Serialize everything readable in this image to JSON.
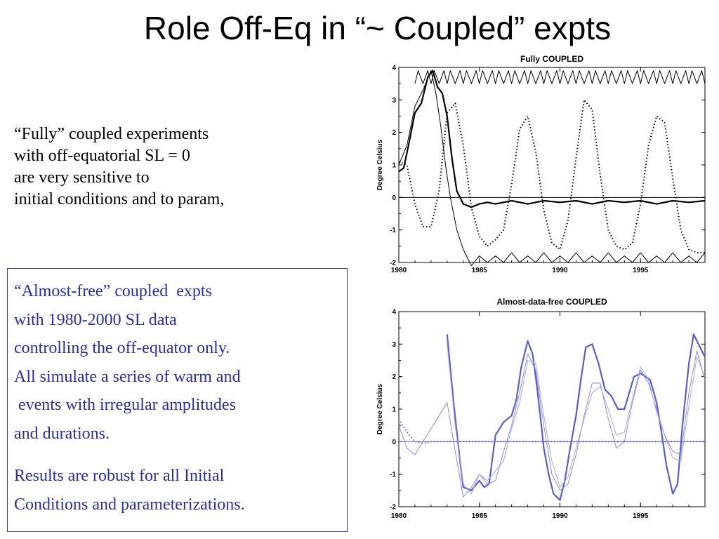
{
  "slide": {
    "title": "Role Off-Eq in “~ Coupled” expts",
    "intro_lines": [
      "“Fully” coupled experiments",
      "with off-equatorial SL = 0",
      "are very sensitive to",
      "initial conditions and to param,"
    ],
    "box_lines": [
      "“Almost-free” coupled  expts",
      "with 1980-2000 SL data",
      "controlling the off-equator only.",
      "All simulate a series of warm and",
      " events with irregular amplitudes",
      "and durations."
    ],
    "box_lines_2": [
      "Results are robust for all Initial",
      "Conditions and parameterizations."
    ],
    "colors": {
      "box_text": "#2a2fa0",
      "box_border": "#3b3f9a",
      "series_blue": "#5a5fc8"
    }
  },
  "chart_data": [
    {
      "type": "line",
      "title": "Fully COUPLED",
      "xlabel": "",
      "ylabel": "Degree Celsius",
      "xlim": [
        1980,
        1999
      ],
      "ylim": [
        -2,
        4
      ],
      "xticks": [
        "1980",
        "1985",
        "1990",
        "1995"
      ],
      "yticks": [
        "4",
        "3",
        "2",
        "1",
        "0",
        "-1",
        "-2"
      ],
      "grid": false,
      "reference_line": 0,
      "series": [
        {
          "style": "thick-solid",
          "color": "#000000",
          "x": [
            1980.0,
            1980.3,
            1980.6,
            1981.0,
            1981.4,
            1981.8,
            1982.1,
            1982.4,
            1982.7,
            1983.0,
            1983.3,
            1983.6,
            1984.0,
            1984.5,
            1985.0,
            1985.5,
            1986.0,
            1987.0,
            1988.0,
            1989.0,
            1990.0,
            1991.0,
            1992.0,
            1993.0,
            1994.0,
            1995.0,
            1996.0,
            1997.0,
            1998.0,
            1999.0
          ],
          "y": [
            0.8,
            0.9,
            1.6,
            2.6,
            2.9,
            3.7,
            3.9,
            3.4,
            3.2,
            2.5,
            1.2,
            0.2,
            -0.2,
            -0.3,
            -0.2,
            -0.15,
            -0.2,
            -0.1,
            -0.2,
            -0.1,
            -0.15,
            -0.1,
            -0.2,
            -0.1,
            -0.15,
            -0.1,
            -0.2,
            -0.1,
            -0.15,
            -0.1
          ]
        },
        {
          "style": "dotted",
          "color": "#000000",
          "x": [
            1980.0,
            1980.5,
            1981.0,
            1981.5,
            1982.0,
            1982.5,
            1983.0,
            1983.5,
            1984.0,
            1984.5,
            1985.0,
            1985.5,
            1986.0,
            1986.5,
            1987.0,
            1987.5,
            1988.0,
            1988.5,
            1989.0,
            1989.5,
            1990.0,
            1990.5,
            1991.0,
            1991.5,
            1992.0,
            1992.5,
            1993.0,
            1993.5,
            1994.0,
            1994.5,
            1995.0,
            1995.5,
            1996.0,
            1996.5,
            1997.0,
            1997.5,
            1998.0,
            1998.5,
            1999.0
          ],
          "y": [
            1.1,
            1.0,
            -0.2,
            -0.9,
            -0.9,
            0.2,
            2.6,
            2.9,
            1.6,
            -0.3,
            -1.2,
            -1.5,
            -1.3,
            -1.0,
            0.4,
            2.1,
            2.5,
            1.4,
            -0.4,
            -1.4,
            -1.6,
            -0.7,
            1.2,
            3.0,
            2.7,
            0.7,
            -1.0,
            -1.5,
            -1.6,
            -1.4,
            -0.2,
            1.6,
            2.5,
            2.3,
            0.6,
            -1.0,
            -1.6,
            -1.7,
            -1.7
          ]
        },
        {
          "style": "thin-solid",
          "color": "#000000",
          "x": [
            1980.0,
            1980.5,
            1981.0,
            1981.5,
            1982.0,
            1982.3,
            1982.6,
            1982.9,
            1983.2,
            1983.6,
            1984.0,
            1984.5,
            1985.0,
            1985.5,
            1986.0,
            1986.5,
            1987.0,
            1987.5,
            1988.0,
            1988.5,
            1989.0,
            1989.5,
            1990.0,
            1990.5,
            1991.0,
            1991.5,
            1992.0,
            1992.5,
            1993.0,
            1993.5,
            1994.0,
            1994.5,
            1995.0,
            1995.5,
            1996.0,
            1996.5,
            1997.0,
            1997.5,
            1998.0,
            1998.5,
            1999.0
          ],
          "y": [
            1.0,
            1.6,
            2.8,
            3.3,
            3.9,
            3.2,
            2.2,
            1.0,
            0.0,
            -1.0,
            -1.6,
            -2.1,
            -1.8,
            -2.0,
            -1.8,
            -2.0,
            -1.7,
            -2.0,
            -1.8,
            -2.0,
            -1.7,
            -2.0,
            -1.8,
            -2.0,
            -1.7,
            -2.0,
            -1.8,
            -2.0,
            -1.7,
            -2.0,
            -1.8,
            -2.0,
            -1.7,
            -2.0,
            -1.8,
            -2.0,
            -1.7,
            -2.0,
            -1.8,
            -2.0,
            -1.7
          ]
        },
        {
          "style": "thin-solid",
          "color": "#000000",
          "x": [
            1981.0,
            1981.2,
            1981.5,
            1981.8,
            1982.0,
            1982.2,
            1982.5,
            1982.8,
            1983.0,
            1983.2,
            1983.5,
            1983.8,
            1984.0,
            1984.2,
            1984.5,
            1984.8,
            1985.0,
            1985.2,
            1985.5,
            1985.8,
            1986.0,
            1986.2,
            1986.5,
            1986.8,
            1987.0,
            1987.2,
            1987.5,
            1987.8,
            1988.0,
            1988.2,
            1988.5,
            1988.8,
            1989.0,
            1989.2,
            1989.5,
            1989.8,
            1990.0,
            1990.2,
            1990.5,
            1990.8,
            1991.0,
            1991.2,
            1991.5,
            1991.8,
            1992.0,
            1992.2,
            1992.5,
            1992.8,
            1993.0,
            1993.2,
            1993.5,
            1993.8,
            1994.0,
            1994.2,
            1994.5,
            1994.8,
            1995.0,
            1995.2,
            1995.5,
            1995.8,
            1996.0,
            1996.2,
            1996.5,
            1996.8,
            1997.0,
            1997.2,
            1997.5,
            1997.8,
            1998.0,
            1998.2,
            1998.5,
            1998.8,
            1999.0
          ],
          "y": [
            3.5,
            3.9,
            3.5,
            3.9,
            3.5,
            3.9,
            3.5,
            3.9,
            3.5,
            3.9,
            3.5,
            3.9,
            3.5,
            3.9,
            3.5,
            3.9,
            3.5,
            3.9,
            3.5,
            3.9,
            3.5,
            3.9,
            3.5,
            3.9,
            3.5,
            3.9,
            3.5,
            3.9,
            3.5,
            3.9,
            3.5,
            3.9,
            3.5,
            3.9,
            3.5,
            3.9,
            3.5,
            3.9,
            3.5,
            3.9,
            3.5,
            3.9,
            3.5,
            3.9,
            3.5,
            3.9,
            3.5,
            3.9,
            3.5,
            3.9,
            3.5,
            3.9,
            3.5,
            3.9,
            3.5,
            3.9,
            3.5,
            3.9,
            3.5,
            3.9,
            3.5,
            3.9,
            3.5,
            3.9,
            3.5,
            3.9,
            3.5,
            3.9,
            3.5,
            3.9,
            3.5,
            3.9,
            3.5
          ]
        }
      ]
    },
    {
      "type": "line",
      "title": "Almost-data-free COUPLED",
      "xlabel": "",
      "ylabel": "Degree Celsius",
      "xlim": [
        1980,
        1999
      ],
      "ylim": [
        -2,
        4
      ],
      "xticks": [
        "1980",
        "1985",
        "1990",
        "1995"
      ],
      "yticks": [
        "4",
        "3",
        "2",
        "1",
        "0",
        "-1",
        "-2"
      ],
      "grid": false,
      "reference_line": 0,
      "series": [
        {
          "style": "thick-solid",
          "color": "#5a5fc8",
          "x": [
            1983.0,
            1983.4,
            1983.8,
            1984.0,
            1984.5,
            1985.0,
            1985.3,
            1985.6,
            1986.0,
            1986.5,
            1987.0,
            1987.3,
            1987.6,
            1988.0,
            1988.3,
            1988.6,
            1989.0,
            1989.3,
            1989.6,
            1990.0,
            1990.3,
            1990.6,
            1991.0,
            1991.3,
            1991.6,
            1992.0,
            1992.4,
            1992.8,
            1993.2,
            1993.6,
            1994.0,
            1994.3,
            1994.6,
            1995.0,
            1995.3,
            1995.6,
            1996.0,
            1996.3,
            1996.6,
            1997.0,
            1997.3,
            1997.6,
            1998.0,
            1998.3,
            1998.6,
            1999.0
          ],
          "y": [
            3.3,
            1.2,
            -0.6,
            -1.4,
            -1.5,
            -1.2,
            -1.4,
            -1.3,
            0.2,
            0.6,
            0.8,
            1.3,
            2.3,
            3.1,
            2.7,
            1.6,
            -0.2,
            -1.0,
            -1.6,
            -1.8,
            -1.2,
            -0.3,
            0.8,
            1.9,
            2.9,
            3.0,
            2.4,
            1.6,
            1.4,
            1.0,
            1.0,
            1.5,
            2.0,
            2.1,
            2.0,
            1.9,
            1.2,
            0.3,
            -0.7,
            -1.6,
            -1.3,
            0.5,
            2.4,
            3.3,
            3.0,
            2.6
          ]
        },
        {
          "style": "thin-solid",
          "color": "#8a8ed8",
          "x": [
            1980.0,
            1980.5,
            1981.0,
            1981.5,
            1982.0,
            1982.5,
            1983.0,
            1983.5,
            1984.0,
            1984.5,
            1985.0,
            1985.5,
            1986.0,
            1986.5,
            1987.0,
            1987.5,
            1988.0,
            1988.5,
            1989.0,
            1989.5,
            1990.0,
            1990.5,
            1991.0,
            1991.5,
            1992.0,
            1992.5,
            1993.0,
            1993.5,
            1994.0,
            1994.5,
            1995.0,
            1995.5,
            1996.0,
            1996.5,
            1997.0,
            1997.5,
            1998.0,
            1998.5,
            1999.0
          ],
          "y": [
            0.5,
            -0.2,
            -0.4,
            0.0,
            0.4,
            0.8,
            1.2,
            -0.3,
            -1.7,
            -1.4,
            -1.0,
            -1.3,
            -1.2,
            -0.3,
            0.5,
            1.5,
            2.7,
            2.2,
            0.5,
            -1.0,
            -1.5,
            -1.3,
            -0.4,
            0.8,
            1.8,
            1.8,
            0.7,
            -0.2,
            0.0,
            1.2,
            2.2,
            1.8,
            1.0,
            0.2,
            -0.3,
            -0.4,
            1.5,
            2.8,
            1.9
          ]
        },
        {
          "style": "thin-solid",
          "color": "#a5a8e0",
          "x": [
            1983.0,
            1983.5,
            1984.0,
            1984.5,
            1985.0,
            1985.5,
            1986.0,
            1986.5,
            1987.0,
            1987.5,
            1988.0,
            1988.5,
            1989.0,
            1989.5,
            1990.0,
            1990.5,
            1991.0,
            1991.5,
            1992.0,
            1992.5,
            1993.0,
            1993.5,
            1994.0,
            1994.5,
            1995.0,
            1995.5,
            1996.0,
            1996.5,
            1997.0,
            1997.5,
            1998.0,
            1998.5,
            1999.0
          ],
          "y": [
            3.0,
            0.5,
            -1.3,
            -1.6,
            -1.0,
            -1.2,
            -0.9,
            -0.6,
            0.4,
            1.2,
            2.5,
            2.4,
            0.8,
            -0.6,
            -1.4,
            -1.1,
            -0.2,
            0.7,
            1.5,
            1.7,
            1.0,
            0.2,
            0.3,
            1.3,
            2.3,
            1.9,
            0.9,
            0.2,
            -0.5,
            -0.6,
            1.1,
            2.6,
            2.0
          ]
        },
        {
          "style": "dotted",
          "color": "#5a5fc8",
          "x": [
            1980.0,
            1980.5,
            1981.0,
            1981.5,
            1982.0,
            1983.0,
            1984.0,
            1985.0,
            1986.0,
            1987.0,
            1988.0,
            1989.0,
            1990.0,
            1991.0,
            1992.0,
            1993.0,
            1994.0,
            1995.0,
            1996.0,
            1997.0,
            1998.0,
            1999.0
          ],
          "y": [
            0.7,
            0.3,
            0.0,
            -0.05,
            0.0,
            0.0,
            0.0,
            0.0,
            0.0,
            0.0,
            0.0,
            0.0,
            0.0,
            0.0,
            0.0,
            0.0,
            0.0,
            0.0,
            0.0,
            0.0,
            0.0,
            0.0
          ]
        }
      ]
    }
  ]
}
